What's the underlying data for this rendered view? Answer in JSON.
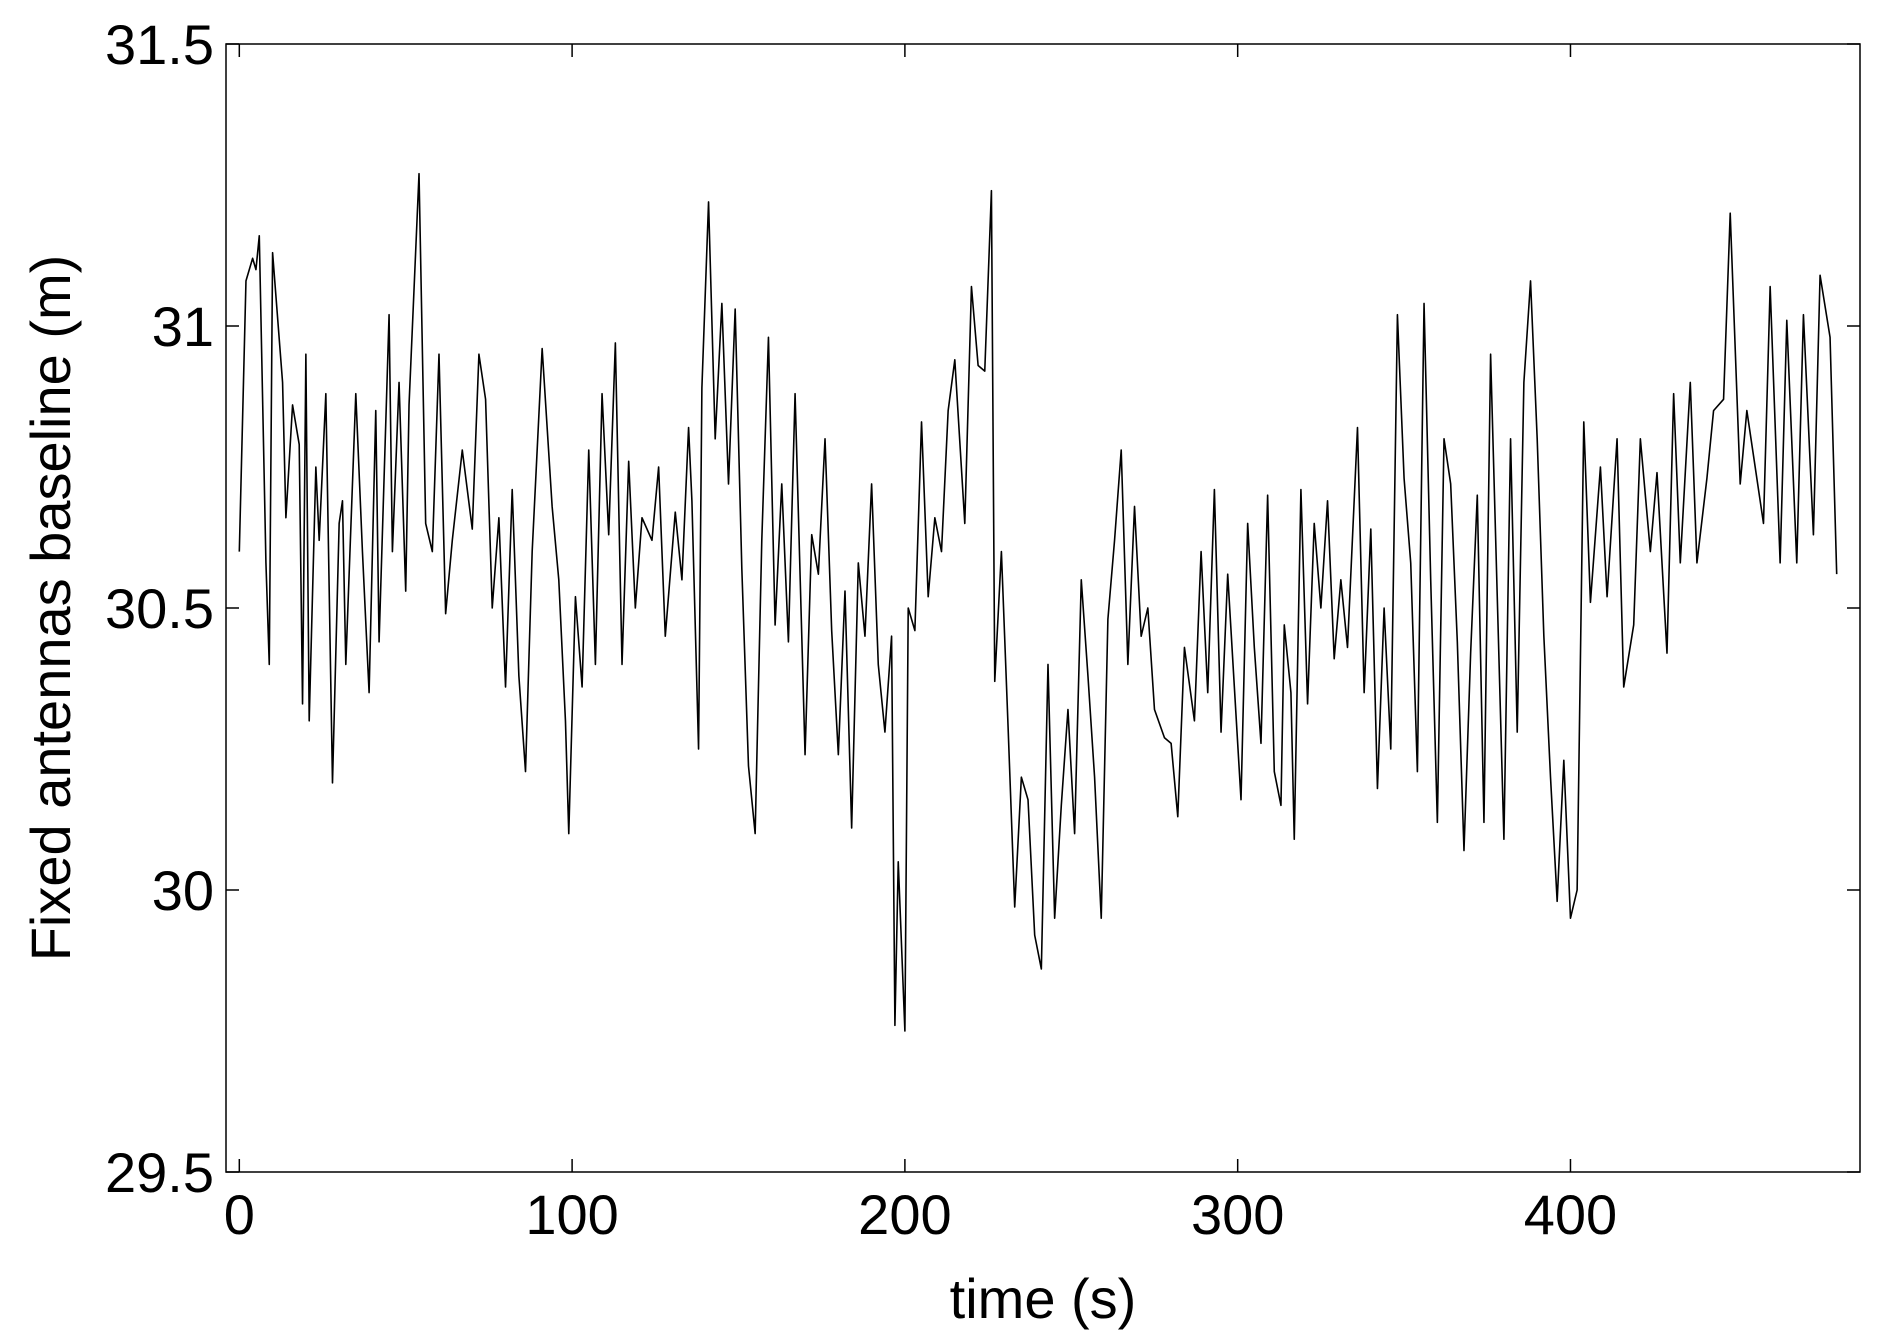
{
  "chart_data": {
    "type": "line",
    "xlabel": "time (s)",
    "ylabel": "Fixed antennas baseline (m)",
    "color": "#000000",
    "x": [
      0,
      2,
      4,
      5,
      6,
      8,
      9,
      10,
      13,
      14,
      16,
      18,
      19,
      20,
      21,
      23,
      24,
      26,
      28,
      30,
      31,
      32,
      35,
      37,
      39,
      41,
      42,
      45,
      46,
      48,
      50,
      51,
      54,
      56,
      58,
      60,
      62,
      64,
      67,
      70,
      72,
      74,
      76,
      78,
      80,
      82,
      84,
      86,
      88,
      91,
      94,
      96,
      98,
      99,
      101,
      103,
      105,
      107,
      109,
      111,
      113,
      115,
      117,
      119,
      121,
      124,
      126,
      128,
      131,
      133,
      135,
      136,
      138,
      139,
      141,
      143,
      145,
      147,
      149,
      151,
      153,
      155,
      157,
      159,
      161,
      163,
      165,
      167,
      170,
      172,
      174,
      176,
      178,
      180,
      182,
      184,
      186,
      188,
      190,
      192,
      194,
      196,
      197,
      198,
      200,
      201,
      203,
      205,
      207,
      209,
      211,
      213,
      215,
      218,
      220,
      222,
      224,
      226,
      227,
      229,
      231,
      233,
      235,
      237,
      239,
      241,
      243,
      245,
      247,
      249,
      251,
      253,
      255,
      257,
      259,
      261,
      263,
      265,
      267,
      269,
      271,
      273,
      275,
      278,
      280,
      282,
      284,
      287,
      289,
      291,
      293,
      295,
      297,
      299,
      301,
      303,
      305,
      307,
      309,
      311,
      313,
      314,
      316,
      317,
      319,
      321,
      323,
      325,
      327,
      329,
      331,
      333,
      336,
      338,
      340,
      342,
      344,
      346,
      348,
      350,
      352,
      354,
      356,
      358,
      360,
      362,
      364,
      366,
      368,
      370,
      372,
      374,
      376,
      378,
      380,
      382,
      384,
      386,
      388,
      390,
      392,
      394,
      396,
      398,
      400,
      402,
      404,
      406,
      409,
      411,
      414,
      416,
      419,
      421,
      424,
      426,
      429,
      431,
      433,
      436,
      438,
      441,
      443,
      446,
      448,
      451,
      453,
      455,
      458,
      460,
      463,
      465,
      468,
      470,
      473,
      475,
      478,
      480
    ],
    "values": [
      30.6,
      31.08,
      31.12,
      31.1,
      31.16,
      30.58,
      30.4,
      31.13,
      30.9,
      30.66,
      30.86,
      30.79,
      30.33,
      30.95,
      30.3,
      30.75,
      30.62,
      30.88,
      30.19,
      30.65,
      30.69,
      30.4,
      30.88,
      30.6,
      30.35,
      30.85,
      30.44,
      31.02,
      30.6,
      30.9,
      30.53,
      30.86,
      31.27,
      30.65,
      30.6,
      30.95,
      30.49,
      30.62,
      30.78,
      30.64,
      30.95,
      30.87,
      30.5,
      30.66,
      30.36,
      30.71,
      30.38,
      30.21,
      30.6,
      30.96,
      30.68,
      30.55,
      30.3,
      30.1,
      30.52,
      30.36,
      30.78,
      30.4,
      30.88,
      30.63,
      30.97,
      30.4,
      30.76,
      30.5,
      30.66,
      30.62,
      30.75,
      30.45,
      30.67,
      30.55,
      30.82,
      30.69,
      30.25,
      30.89,
      31.22,
      30.8,
      31.04,
      30.72,
      31.03,
      30.57,
      30.22,
      30.1,
      30.62,
      30.98,
      30.47,
      30.72,
      30.44,
      30.88,
      30.24,
      30.63,
      30.56,
      30.8,
      30.46,
      30.24,
      30.53,
      30.11,
      30.58,
      30.45,
      30.72,
      30.4,
      30.28,
      30.45,
      29.76,
      30.05,
      29.75,
      30.5,
      30.46,
      30.83,
      30.52,
      30.66,
      30.6,
      30.85,
      30.94,
      30.65,
      31.07,
      30.93,
      30.92,
      31.24,
      30.37,
      30.6,
      30.29,
      29.97,
      30.2,
      30.16,
      29.92,
      29.86,
      30.4,
      29.95,
      30.15,
      30.32,
      30.1,
      30.55,
      30.38,
      30.2,
      29.95,
      30.48,
      30.62,
      30.78,
      30.4,
      30.68,
      30.45,
      30.5,
      30.32,
      30.27,
      30.26,
      30.13,
      30.43,
      30.3,
      30.6,
      30.35,
      30.71,
      30.28,
      30.56,
      30.36,
      30.16,
      30.65,
      30.43,
      30.26,
      30.7,
      30.21,
      30.15,
      30.47,
      30.35,
      30.09,
      30.71,
      30.33,
      30.65,
      30.5,
      30.69,
      30.41,
      30.55,
      30.43,
      30.82,
      30.35,
      30.64,
      30.18,
      30.5,
      30.25,
      31.02,
      30.73,
      30.58,
      30.21,
      31.04,
      30.55,
      30.12,
      30.8,
      30.72,
      30.44,
      30.07,
      30.42,
      30.7,
      30.12,
      30.95,
      30.52,
      30.09,
      30.8,
      30.28,
      30.9,
      31.08,
      30.8,
      30.45,
      30.2,
      29.98,
      30.23,
      29.95,
      30.0,
      30.83,
      30.51,
      30.75,
      30.52,
      30.8,
      30.36,
      30.47,
      30.8,
      30.6,
      30.74,
      30.42,
      30.88,
      30.58,
      30.9,
      30.58,
      30.73,
      30.85,
      30.87,
      31.2,
      30.72,
      30.85,
      30.77,
      30.65,
      31.07,
      30.58,
      31.01,
      30.58,
      31.02,
      30.63,
      31.09,
      30.98,
      30.56
    ],
    "xlim": [
      -4,
      487
    ],
    "ylim": [
      29.5,
      31.5
    ],
    "xticks": [
      0,
      100,
      200,
      300,
      400
    ],
    "yticks": [
      29.5,
      30,
      30.5,
      31,
      31.5
    ]
  }
}
